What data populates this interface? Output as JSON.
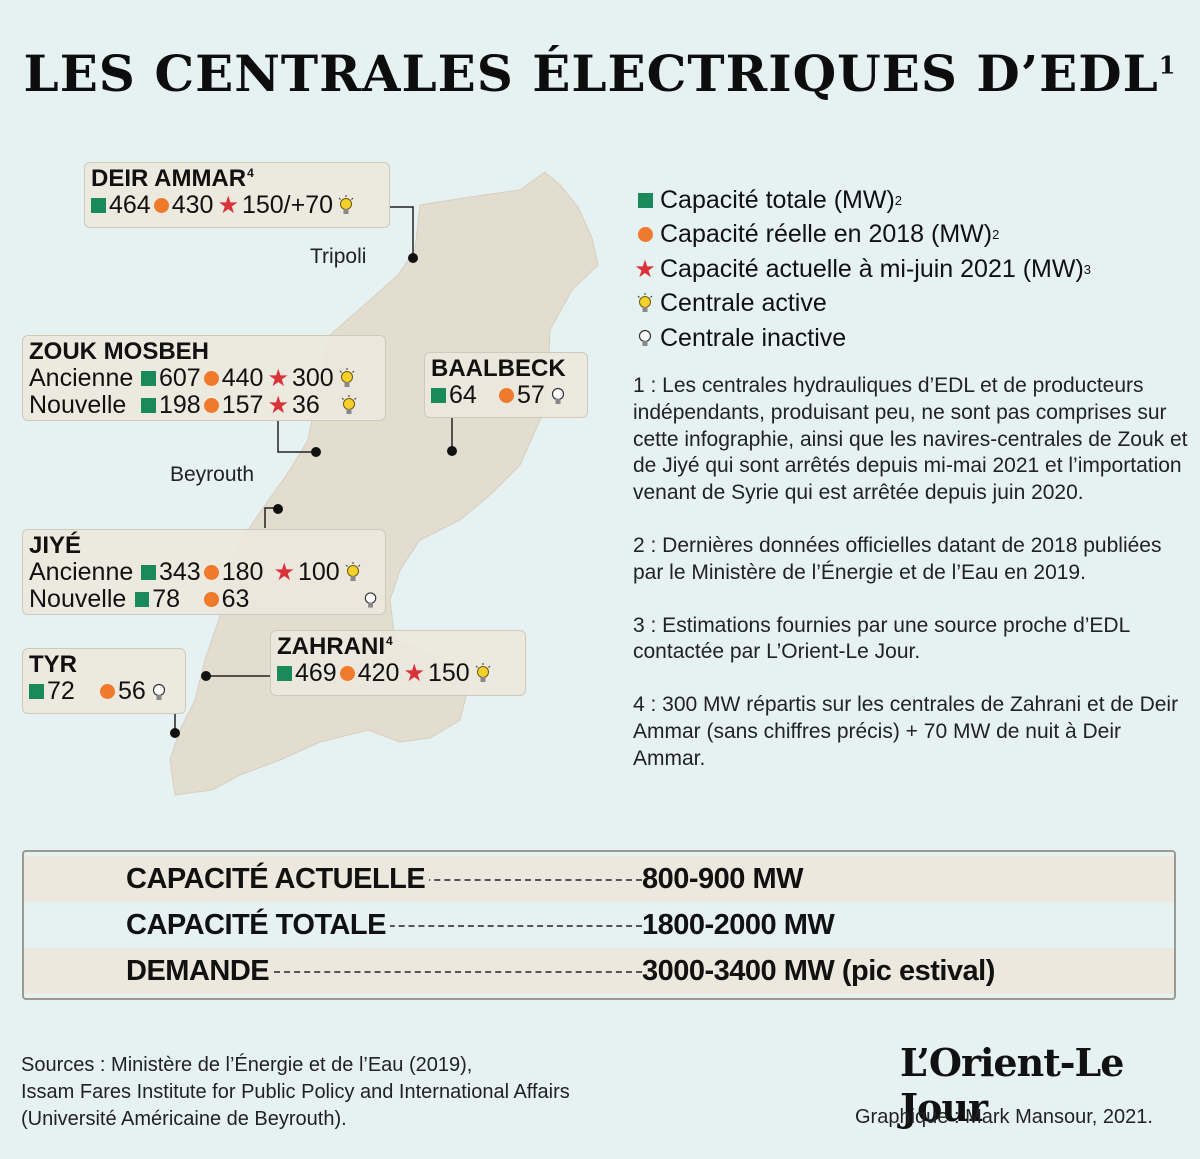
{
  "title": "LES CENTRALES ÉLECTRIQUES D’EDL",
  "title_note": "1",
  "cities": {
    "tripoli": "Tripoli",
    "beyrouth": "Beyrouth"
  },
  "plants": {
    "deir_ammar": {
      "name": "DEIR AMMAR",
      "note": "4",
      "total": "464",
      "reelle": "430",
      "actuelle": "150/+70",
      "status": "active"
    },
    "zouk": {
      "name": "ZOUK MOSBEH",
      "ancienne": {
        "label": "Ancienne",
        "total": "607",
        "reelle": "440",
        "actuelle": "300",
        "status": "active"
      },
      "nouvelle": {
        "label": "Nouvelle",
        "total": "198",
        "reelle": "157",
        "actuelle": "36",
        "status": "active"
      }
    },
    "baalbeck": {
      "name": "BAALBECK",
      "total": "64",
      "reelle": "57",
      "status": "inactive"
    },
    "jiye": {
      "name": "JIYÉ",
      "ancienne": {
        "label": "Ancienne",
        "total": "343",
        "reelle": "180",
        "actuelle": "100",
        "status": "active"
      },
      "nouvelle": {
        "label": "Nouvelle",
        "total": "78",
        "reelle": "63",
        "status": "inactive"
      }
    },
    "zahrani": {
      "name": "ZAHRANI",
      "note": "4",
      "total": "469",
      "reelle": "420",
      "actuelle": "150",
      "status": "active"
    },
    "tyr": {
      "name": "TYR",
      "total": "72",
      "reelle": "56",
      "status": "inactive"
    }
  },
  "legend": {
    "total": "Capacité totale (MW)",
    "total_note": "2",
    "reelle": "Capacité réelle en 2018 (MW)",
    "reelle_note": "2",
    "actuelle": "Capacité actuelle à mi-juin 2021 (MW)",
    "actuelle_note": "3",
    "active": "Centrale active",
    "inactive": "Centrale inactive"
  },
  "notes": [
    "1 : Les centrales hydrauliques d’EDL et de producteurs indépendants, produisant peu, ne sont pas comprises sur cette infographie, ainsi que les navires-centrales de Zouk et de Jiyé qui sont arrêtés depuis mi-mai 2021 et l’importation venant de Syrie qui est arrêtée depuis juin 2020.",
    "2 : Dernières données officielles datant de 2018 publiées par le Ministère de l’Énergie et de l’Eau en 2019.",
    "3 : Estimations fournies par une source proche d’EDL contactée par L’Orient-Le Jour.",
    "4 : 300 MW répartis sur les centrales de Zahrani et de Deir Ammar (sans chiffres précis) + 70 MW de nuit à Deir Ammar."
  ],
  "summary": [
    {
      "label": "CAPACITÉ ACTUELLE",
      "value": "800-900 MW"
    },
    {
      "label": "CAPACITÉ TOTALE",
      "value": "1800-2000 MW"
    },
    {
      "label": "DEMANDE",
      "value": "3000-3400 MW (pic estival)"
    }
  ],
  "sources": [
    "Sources : Ministère de l’Énergie et de l’Eau (2019),",
    "Issam Fares Institute for Public Policy and International Affairs",
    "(Université Américaine de Beyrouth)."
  ],
  "logo": "L’Orient-Le Jour",
  "credit": "Graphique : Mark Mansour, 2021.",
  "colors": {
    "total": "#1a8a5a",
    "reelle": "#ef7a2c",
    "actuelle": "#d9323b",
    "bulb_active": "#f5d02a",
    "land": "#e3ddd0",
    "background": "#e6f1f2"
  }
}
